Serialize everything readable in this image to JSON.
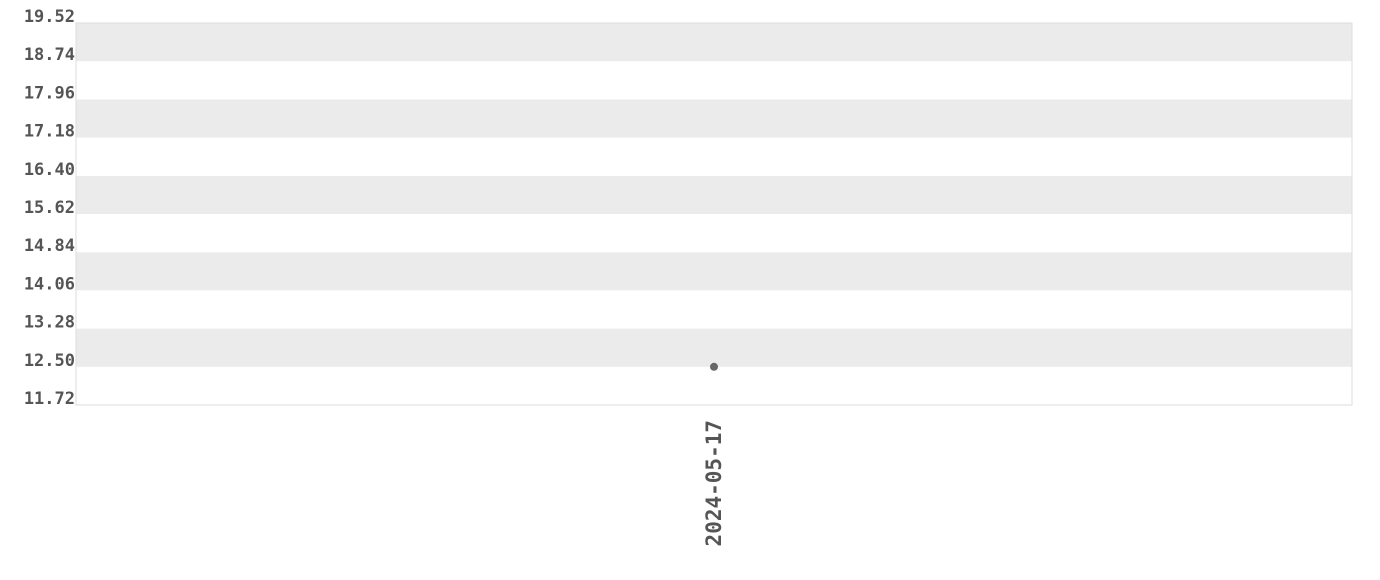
{
  "chart_data": {
    "type": "scatter",
    "title": "",
    "xlabel": "",
    "ylabel": "",
    "x_ticks": [
      "2024-05-17"
    ],
    "y_ticks": [
      "11.72",
      "12.50",
      "13.28",
      "14.06",
      "14.84",
      "15.62",
      "16.40",
      "17.18",
      "17.96",
      "18.74",
      "19.52"
    ],
    "ylim": [
      11.72,
      19.52
    ],
    "grid": "alternating horizontal bands",
    "points": [
      {
        "x": "2024-05-17",
        "y": 12.5
      }
    ],
    "colors": {
      "point": "#666666",
      "band": "#ebebeb",
      "text": "#555555"
    }
  }
}
